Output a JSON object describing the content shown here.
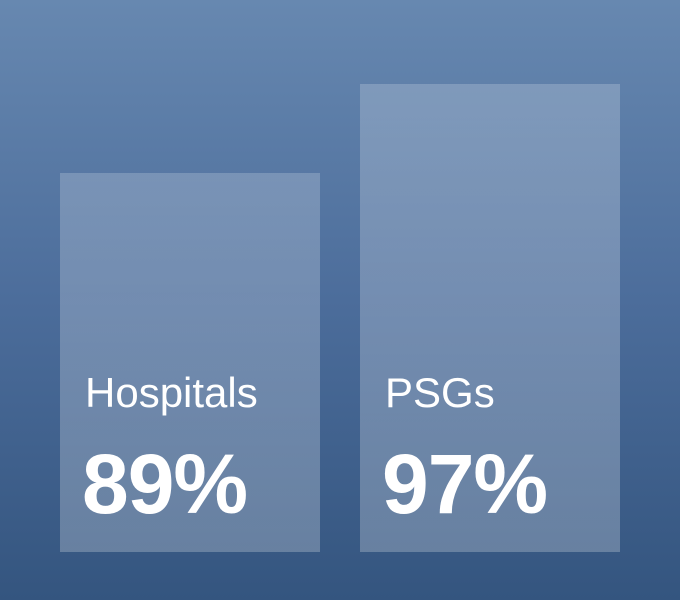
{
  "chart_data": {
    "type": "bar",
    "categories": [
      "Hospitals",
      "PSGs"
    ],
    "values": [
      89,
      97
    ],
    "value_labels": [
      "89%",
      "97%"
    ],
    "unit": "%",
    "title": "",
    "xlabel": "",
    "ylabel": "",
    "grid": false,
    "legend": "none"
  },
  "colors": {
    "background_top": "#6788b0",
    "background_bottom": "#34557f",
    "bar_fill": "rgba(255,255,255,0.22)",
    "text": "#ffffff"
  }
}
